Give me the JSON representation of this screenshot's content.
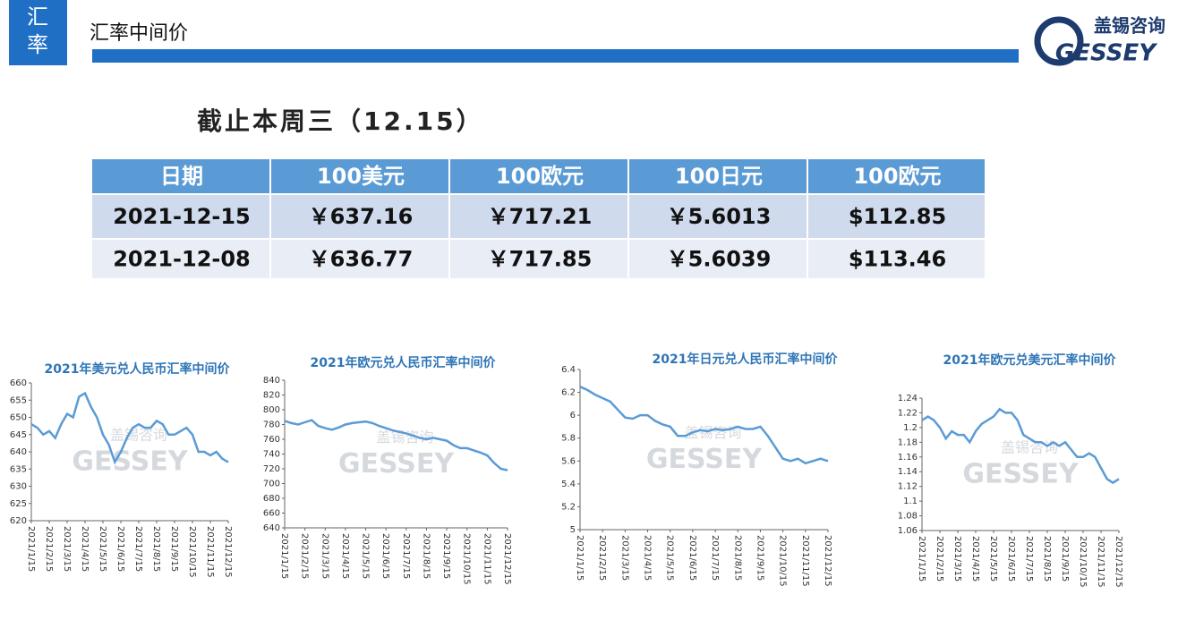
{
  "header": {
    "badge": [
      "汇",
      "率"
    ],
    "title": "汇率中间价",
    "logo_cn": "盖锡咨询",
    "logo_en": "GESSEY"
  },
  "subtitle": "截止本周三（12.15）",
  "table": {
    "columns": [
      "日期",
      "100美元",
      "100欧元",
      "100日元",
      "100欧元"
    ],
    "rows": [
      [
        "2021-12-15",
        "￥637.16",
        "￥717.21",
        "￥5.6013",
        "$112.85"
      ],
      [
        "2021-12-08",
        "￥636.77",
        "￥717.85",
        "￥5.6039",
        "$113.46"
      ]
    ]
  },
  "watermark": {
    "brand_cn": "盖锡咨询",
    "brand_en": "GESSEY"
  },
  "chart_data": [
    {
      "type": "line",
      "title": "2021年美元兑人民币汇率中间价",
      "color": "#5b9bd5",
      "categories": [
        "2021/1/15",
        null,
        null,
        "2021/2/15",
        null,
        null,
        "2021/3/15",
        null,
        null,
        "2021/4/15",
        null,
        null,
        "2021/5/15",
        null,
        null,
        "2021/6/15",
        null,
        null,
        "2021/7/15",
        null,
        null,
        "2021/8/15",
        null,
        null,
        "2021/9/15",
        null,
        null,
        "2021/10/15",
        null,
        null,
        "2021/11/15",
        null,
        null,
        "2021/12/15"
      ],
      "values": [
        648,
        647,
        645,
        646,
        644,
        648,
        651,
        650,
        656,
        657,
        653,
        650,
        645,
        642,
        637,
        640,
        644,
        647,
        648,
        647,
        647,
        649,
        648,
        645,
        645,
        646,
        647,
        645,
        640,
        640,
        639,
        640,
        638,
        637
      ],
      "ylim": [
        620,
        660
      ],
      "yticks": [
        620,
        625,
        630,
        635,
        640,
        645,
        650,
        655,
        660
      ]
    },
    {
      "type": "line",
      "title": "2021年欧元兑人民币汇率中间价",
      "color": "#5b9bd5",
      "categories": [
        "2021/1/15",
        null,
        null,
        "2021/2/15",
        null,
        null,
        "2021/3/15",
        null,
        null,
        "2021/4/15",
        null,
        null,
        "2021/5/15",
        null,
        null,
        "2021/6/15",
        null,
        null,
        "2021/7/15",
        null,
        null,
        "2021/8/15",
        null,
        null,
        "2021/9/15",
        null,
        null,
        "2021/10/15",
        null,
        null,
        "2021/11/15",
        null,
        null,
        "2021/12/15"
      ],
      "values": [
        785,
        782,
        780,
        783,
        786,
        778,
        775,
        773,
        776,
        780,
        782,
        783,
        784,
        782,
        778,
        775,
        772,
        770,
        768,
        765,
        762,
        760,
        762,
        760,
        758,
        752,
        748,
        748,
        745,
        742,
        738,
        728,
        720,
        718
      ],
      "ylim": [
        640,
        840
      ],
      "yticks": [
        640,
        660,
        680,
        700,
        720,
        740,
        760,
        780,
        800,
        820,
        840
      ]
    },
    {
      "type": "line",
      "title": "2021年日元兑人民币汇率中间价",
      "color": "#5b9bd5",
      "categories": [
        "2021/1/15",
        null,
        null,
        "2021/2/15",
        null,
        null,
        "2021/3/15",
        null,
        null,
        "2021/4/15",
        null,
        null,
        "2021/5/15",
        null,
        null,
        "2021/6/15",
        null,
        null,
        "2021/7/15",
        null,
        null,
        "2021/8/15",
        null,
        null,
        "2021/9/15",
        null,
        null,
        "2021/10/15",
        null,
        null,
        "2021/11/15",
        null,
        null,
        "2021/12/15"
      ],
      "values": [
        6.25,
        6.22,
        6.18,
        6.15,
        6.12,
        6.05,
        5.98,
        5.97,
        6.0,
        6.0,
        5.95,
        5.92,
        5.9,
        5.82,
        5.82,
        5.85,
        5.87,
        5.86,
        5.88,
        5.87,
        5.88,
        5.9,
        5.88,
        5.88,
        5.9,
        5.82,
        5.72,
        5.62,
        5.6,
        5.62,
        5.58,
        5.6,
        5.62,
        5.6
      ],
      "ylim": [
        5,
        6.4
      ],
      "yticks": [
        5,
        5.2,
        5.4,
        5.6,
        5.8,
        6,
        6.2,
        6.4
      ]
    },
    {
      "type": "line",
      "title": "2021年欧元兑美元汇率中间价",
      "color": "#5b9bd5",
      "categories": [
        "2021/1/15",
        null,
        null,
        "2021/2/15",
        null,
        null,
        "2021/3/15",
        null,
        null,
        "2021/4/15",
        null,
        null,
        "2021/5/15",
        null,
        null,
        "2021/6/15",
        null,
        null,
        "2021/7/15",
        null,
        null,
        "2021/8/15",
        null,
        null,
        "2021/9/15",
        null,
        null,
        "2021/10/15",
        null,
        null,
        "2021/11/15",
        null,
        null,
        "2021/12/15"
      ],
      "values": [
        1.21,
        1.215,
        1.21,
        1.2,
        1.185,
        1.195,
        1.19,
        1.19,
        1.18,
        1.195,
        1.205,
        1.21,
        1.215,
        1.225,
        1.22,
        1.22,
        1.21,
        1.19,
        1.185,
        1.18,
        1.18,
        1.175,
        1.18,
        1.175,
        1.18,
        1.17,
        1.16,
        1.16,
        1.165,
        1.16,
        1.145,
        1.13,
        1.125,
        1.13
      ],
      "ylim": [
        1.06,
        1.24
      ],
      "yticks": [
        1.06,
        1.08,
        1.1,
        1.12,
        1.14,
        1.16,
        1.18,
        1.2,
        1.22,
        1.24
      ]
    }
  ]
}
